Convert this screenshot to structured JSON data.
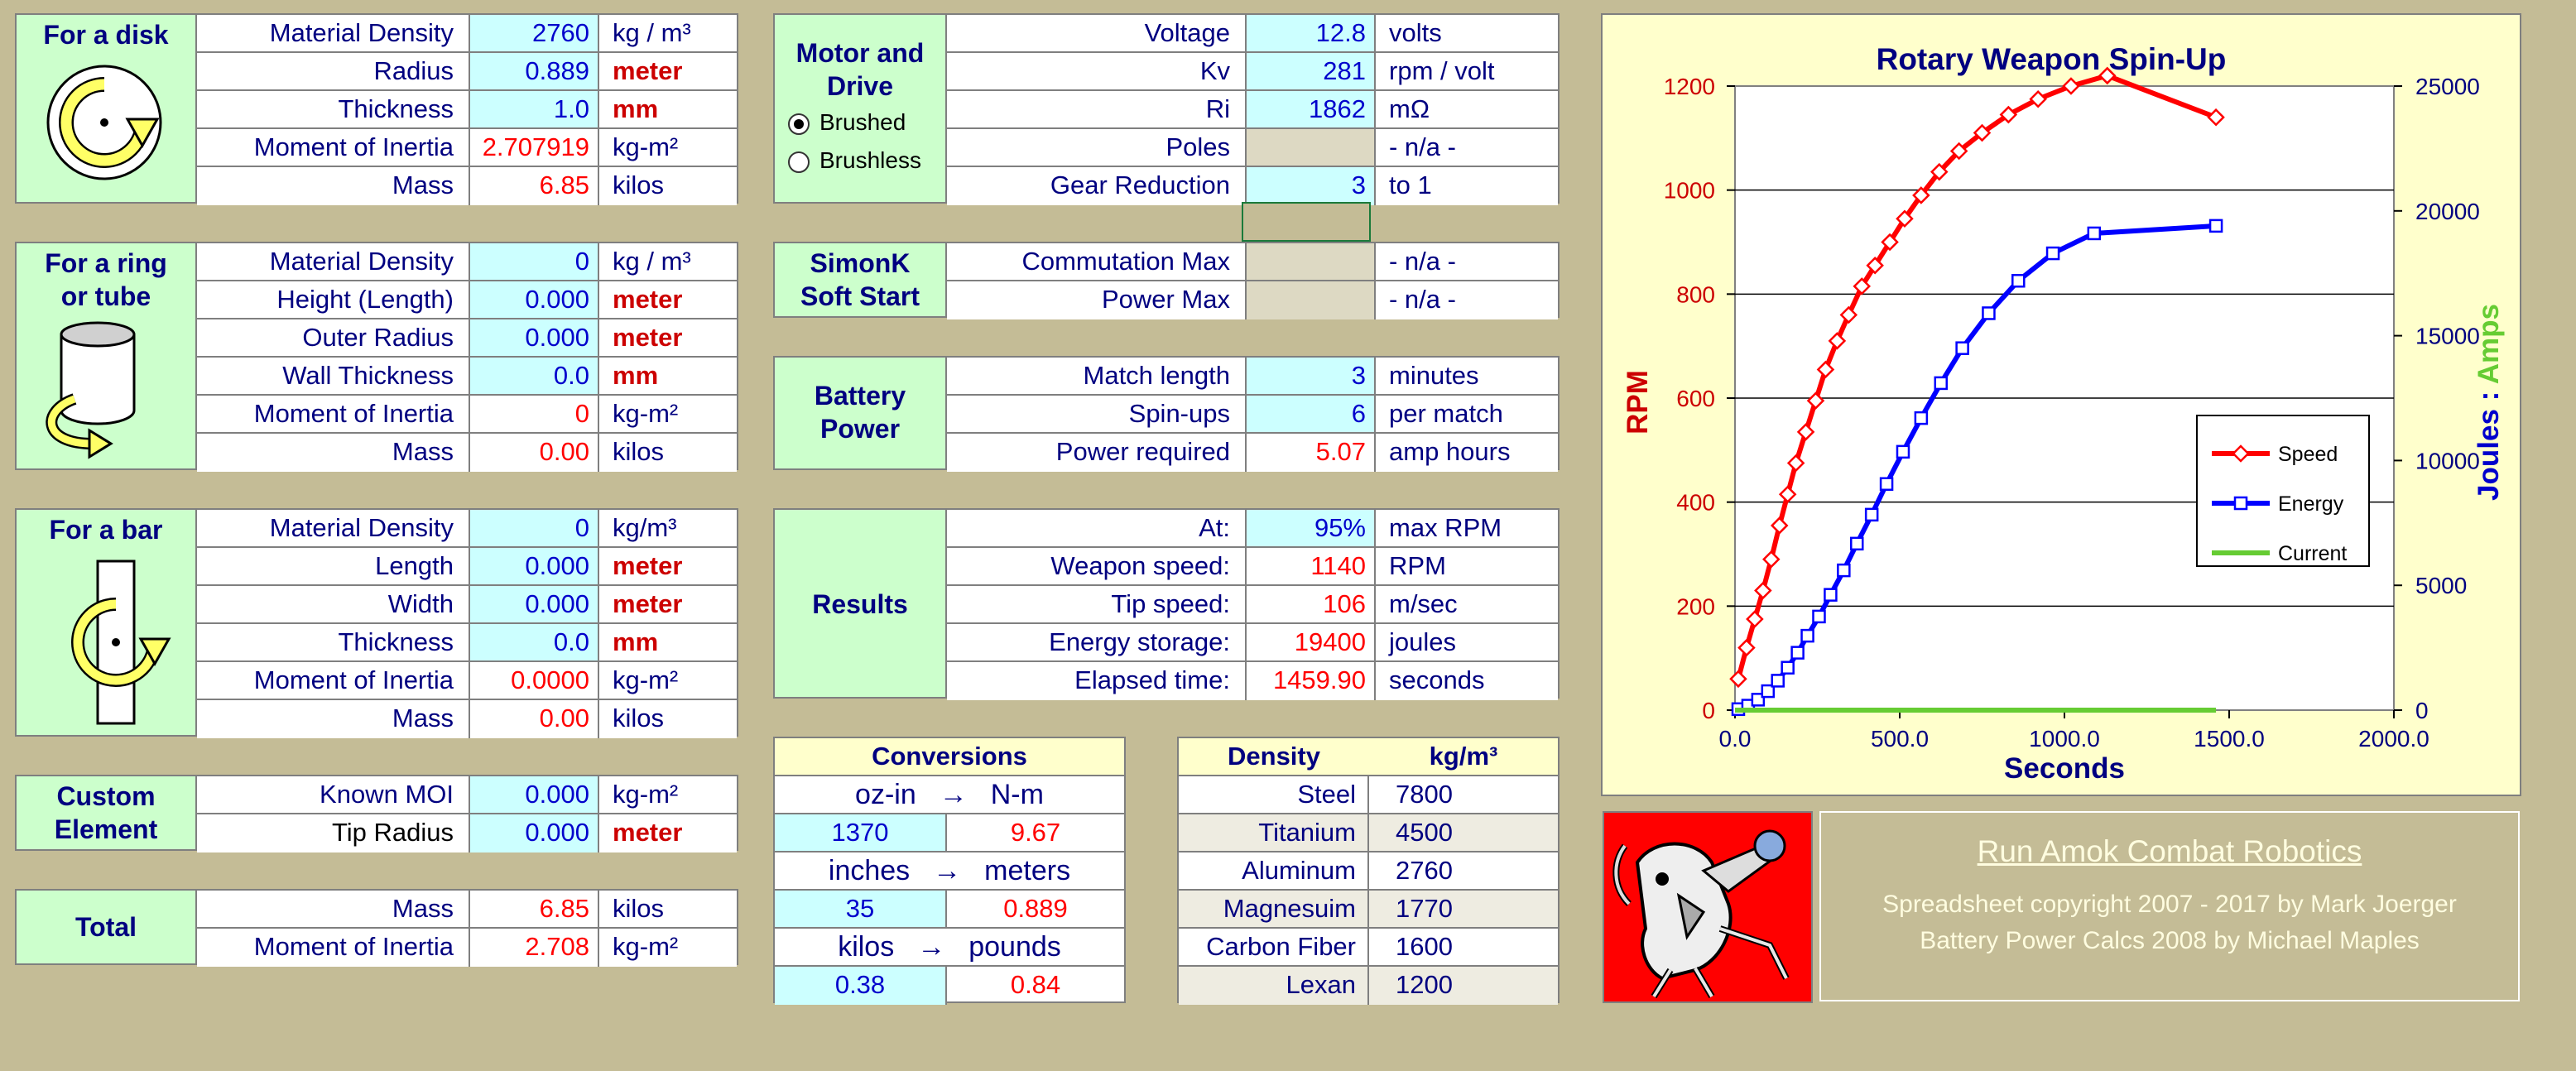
{
  "disk": {
    "title": "For a disk",
    "icon": "disk-rotation-icon",
    "rows": [
      {
        "name": "Material Density",
        "value": "2760",
        "unit": "kg / m³",
        "vtype": "in",
        "utype": ""
      },
      {
        "name": "Radius",
        "value": "0.889",
        "unit": "meter",
        "vtype": "in",
        "utype": "red"
      },
      {
        "name": "Thickness",
        "value": "1.0",
        "unit": "mm",
        "vtype": "in",
        "utype": "red"
      },
      {
        "name": "Moment of Inertia",
        "value": "2.707919",
        "unit": "kg-m²",
        "vtype": "out",
        "utype": ""
      },
      {
        "name": "Mass",
        "value": "6.85",
        "unit": "kilos",
        "vtype": "out",
        "utype": ""
      }
    ]
  },
  "ring": {
    "title1": "For a ring",
    "title2": "or tube",
    "icon": "cylinder-rotation-icon",
    "rows": [
      {
        "name": "Material Density",
        "value": "0",
        "unit": "kg / m³",
        "vtype": "in",
        "utype": ""
      },
      {
        "name": "Height (Length)",
        "value": "0.000",
        "unit": "meter",
        "vtype": "in",
        "utype": "red"
      },
      {
        "name": "Outer Radius",
        "value": "0.000",
        "unit": "meter",
        "vtype": "in",
        "utype": "red"
      },
      {
        "name": "Wall Thickness",
        "value": "0.0",
        "unit": "mm",
        "vtype": "in",
        "utype": "red"
      },
      {
        "name": "Moment of Inertia",
        "value": "0",
        "unit": "kg-m²",
        "vtype": "out",
        "utype": ""
      },
      {
        "name": "Mass",
        "value": "0.00",
        "unit": "kilos",
        "vtype": "out",
        "utype": ""
      }
    ]
  },
  "bar": {
    "title": "For a bar",
    "icon": "bar-rotation-icon",
    "rows": [
      {
        "name": "Material Density",
        "value": "0",
        "unit": "kg/m³",
        "vtype": "in",
        "utype": ""
      },
      {
        "name": "Length",
        "value": "0.000",
        "unit": "meter",
        "vtype": "in",
        "utype": "red"
      },
      {
        "name": "Width",
        "value": "0.000",
        "unit": "meter",
        "vtype": "in",
        "utype": "red"
      },
      {
        "name": "Thickness",
        "value": "0.0",
        "unit": "mm",
        "vtype": "in",
        "utype": "red"
      },
      {
        "name": "Moment of Inertia",
        "value": "0.0000",
        "unit": "kg-m²",
        "vtype": "out",
        "utype": ""
      },
      {
        "name": "Mass",
        "value": "0.00",
        "unit": "kilos",
        "vtype": "out",
        "utype": ""
      }
    ]
  },
  "custom": {
    "title1": "Custom",
    "title2": "Element",
    "rows": [
      {
        "name": "Known MOI",
        "value": "0.000",
        "unit": "kg-m²",
        "vtype": "in",
        "utype": ""
      },
      {
        "name": "Tip Radius",
        "value": "0.000",
        "unit": "meter",
        "vtype": "in",
        "utype": "red"
      }
    ]
  },
  "total": {
    "title": "Total",
    "rows": [
      {
        "name": "Mass",
        "value": "6.85",
        "unit": "kilos",
        "vtype": "out",
        "utype": ""
      },
      {
        "name": "Moment of Inertia",
        "value": "2.708",
        "unit": "kg-m²",
        "vtype": "out",
        "utype": ""
      }
    ]
  },
  "motor": {
    "title1": "Motor and",
    "title2": "Drive",
    "radio_brushed": "Brushed",
    "radio_brushless": "Brushless",
    "selected": "Brushed",
    "rows": [
      {
        "name": "Voltage",
        "value": "12.8",
        "unit": "volts",
        "vtype": "in"
      },
      {
        "name": "Kv",
        "value": "281",
        "unit": "rpm / volt",
        "vtype": "in"
      },
      {
        "name": "Ri",
        "value": "1862",
        "unit": "mΩ",
        "vtype": "in"
      },
      {
        "name": "Poles",
        "value": "",
        "unit": "- n/a -",
        "vtype": "gray"
      },
      {
        "name": "Gear Reduction",
        "value": "3",
        "unit": "to 1",
        "vtype": "in"
      }
    ]
  },
  "simonk": {
    "title1": "SimonK",
    "title2": "Soft Start",
    "rows": [
      {
        "name": "Commutation Max",
        "value": "",
        "unit": "- n/a -",
        "vtype": "gray"
      },
      {
        "name": "Power Max",
        "value": "",
        "unit": "- n/a -",
        "vtype": "gray"
      }
    ]
  },
  "battery": {
    "title1": "Battery",
    "title2": "Power",
    "rows": [
      {
        "name": "Match length",
        "value": "3",
        "unit": "minutes",
        "vtype": "in"
      },
      {
        "name": "Spin-ups",
        "value": "6",
        "unit": "per match",
        "vtype": "in"
      },
      {
        "name": "Power required",
        "value": "5.07",
        "unit": "amp hours",
        "vtype": "out"
      }
    ]
  },
  "results": {
    "title": "Results",
    "rows": [
      {
        "name": "At:",
        "value": "95%",
        "unit": "max RPM",
        "vtype": "in"
      },
      {
        "name": "Weapon speed:",
        "value": "1140",
        "unit": "RPM",
        "vtype": "out"
      },
      {
        "name": "Tip speed:",
        "value": "106",
        "unit": "m/sec",
        "vtype": "out"
      },
      {
        "name": "Energy storage:",
        "value": "19400",
        "unit": "joules",
        "vtype": "out"
      },
      {
        "name": "Elapsed time:",
        "value": "1459.90",
        "unit": "seconds",
        "vtype": "out"
      }
    ]
  },
  "conversions": {
    "title": "Conversions",
    "pairs": [
      {
        "from": "oz-in",
        "to": "N-m",
        "in": "1370",
        "out": "9.67"
      },
      {
        "from": "inches",
        "to": "meters",
        "in": "35",
        "out": "0.889"
      },
      {
        "from": "kilos",
        "to": "pounds",
        "in": "0.38",
        "out": "0.84"
      }
    ],
    "arrow": "→"
  },
  "density": {
    "header_material": "Density",
    "header_unit": "kg/m³",
    "rows": [
      {
        "material": "Steel",
        "value": "7800"
      },
      {
        "material": "Titanium",
        "value": "4500"
      },
      {
        "material": "Aluminum",
        "value": "2760"
      },
      {
        "material": "Magnesuim",
        "value": "1770"
      },
      {
        "material": "Carbon Fiber",
        "value": "1600"
      },
      {
        "material": "Lexan",
        "value": "1200"
      }
    ]
  },
  "credits": {
    "link": "Run Amok Combat Robotics",
    "line1": "Spreadsheet copyright 2007 - 2017 by Mark Joerger",
    "line2": "Battery Power Calcs 2008 by Michael Maples",
    "logo": "robot-mascot-logo"
  },
  "chart_data": {
    "type": "line",
    "title": "Rotary Weapon Spin-Up",
    "xlabel": "Seconds",
    "ylabel_left": "RPM",
    "ylabel_right_a": "Joules",
    "ylabel_right_sep": " : ",
    "ylabel_right_b": "Amps",
    "xlim": [
      0,
      2000
    ],
    "ylim_left": [
      0,
      1200
    ],
    "ylim_right": [
      0,
      25000
    ],
    "x_ticks": [
      "0.0",
      "500.0",
      "1000.0",
      "1500.0",
      "2000.0"
    ],
    "y_left_ticks": [
      "0",
      "200",
      "400",
      "600",
      "800",
      "1000",
      "1200"
    ],
    "y_right_ticks": [
      "0",
      "5000",
      "10000",
      "15000",
      "20000",
      "25000"
    ],
    "grid": true,
    "legend_position": "right",
    "series": [
      {
        "name": "Speed",
        "axis": "left",
        "color": "#ff0000",
        "marker": "diamond",
        "x": [
          10,
          35,
          60,
          85,
          110,
          135,
          160,
          185,
          215,
          245,
          275,
          310,
          345,
          385,
          425,
          470,
          515,
          565,
          620,
          680,
          750,
          830,
          920,
          1020,
          1130,
          1460
        ],
        "y": [
          60,
          120,
          175,
          230,
          290,
          355,
          415,
          475,
          535,
          595,
          655,
          710,
          760,
          815,
          855,
          900,
          945,
          990,
          1035,
          1075,
          1110,
          1145,
          1175,
          1200,
          1220,
          1140
        ]
      },
      {
        "name": "Energy",
        "axis": "right",
        "color": "#0000ff",
        "marker": "square",
        "x": [
          10,
          40,
          70,
          100,
          130,
          160,
          190,
          220,
          255,
          290,
          330,
          370,
          415,
          460,
          510,
          565,
          625,
          690,
          770,
          860,
          965,
          1090,
          1460
        ],
        "y": [
          40,
          180,
          420,
          760,
          1180,
          1700,
          2300,
          2980,
          3750,
          4620,
          5600,
          6670,
          7830,
          9060,
          10350,
          11700,
          13100,
          14500,
          15900,
          17200,
          18300,
          19100,
          19400
        ]
      },
      {
        "name": "Current",
        "axis": "right",
        "color": "#66cc33",
        "marker": "none",
        "x": [
          0,
          1460
        ],
        "y": [
          0,
          0
        ]
      }
    ]
  }
}
